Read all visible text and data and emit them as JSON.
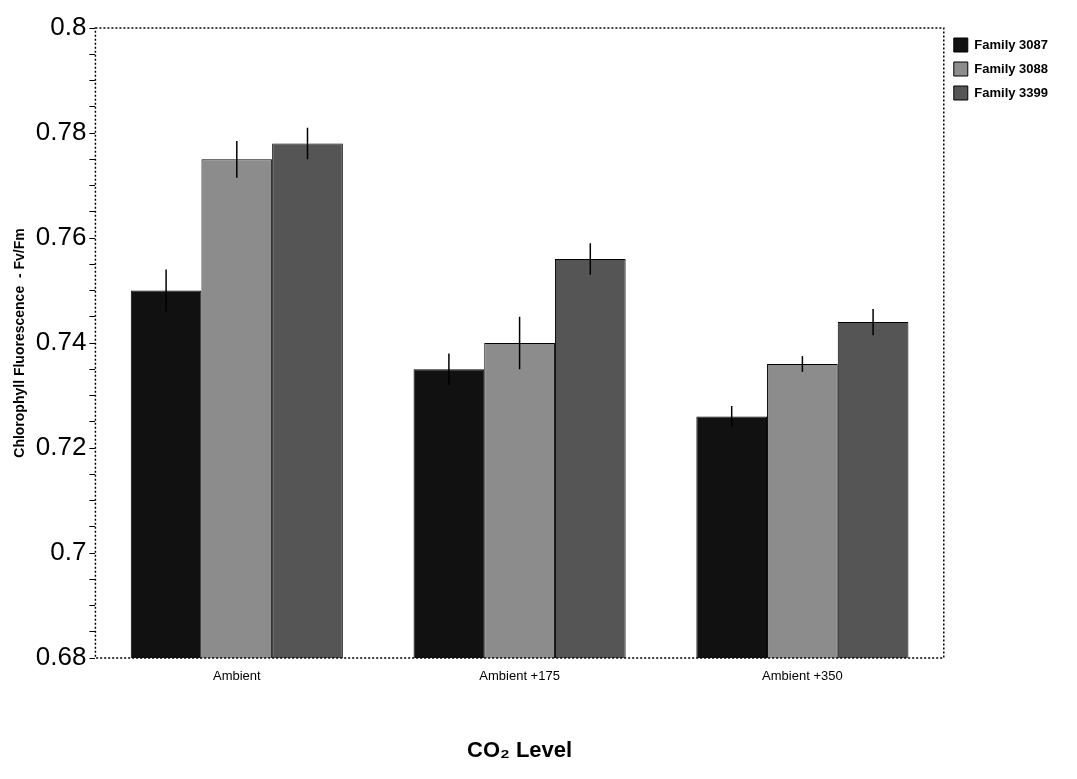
{
  "chart_data": {
    "type": "bar",
    "xlabel": "CO₂ Level",
    "ylabel": "Chlorophyll Fluorescence  - Fv/Fm",
    "categories": [
      "Ambient",
      "Ambient +175",
      "Ambient +350"
    ],
    "series": [
      {
        "name": "Family 3087",
        "color": "#111111",
        "values": [
          0.75,
          0.735,
          0.726
        ],
        "errors": [
          0.004,
          0.003,
          0.002
        ]
      },
      {
        "name": "Family 3088",
        "color": "#8c8c8c",
        "values": [
          0.775,
          0.74,
          0.736
        ],
        "errors": [
          0.0035,
          0.005,
          0.0015
        ]
      },
      {
        "name": "Family 3399",
        "color": "#555555",
        "values": [
          0.778,
          0.756,
          0.744
        ],
        "errors": [
          0.003,
          0.003,
          0.0025
        ]
      }
    ],
    "ylim": [
      0.68,
      0.8
    ],
    "yticks": [
      0.68,
      {
        "value": 0.685,
        "label": null
      },
      {
        "value": 0.69,
        "label": null
      },
      {
        "value": 0.695,
        "label": null
      },
      0.7,
      {
        "value": 0.705,
        "label": null
      },
      {
        "value": 0.71,
        "label": null
      },
      {
        "value": 0.715,
        "label": null
      },
      0.72,
      {
        "value": 0.725,
        "label": null
      },
      {
        "value": 0.73,
        "label": null
      },
      {
        "value": 0.735,
        "label": null
      },
      0.74,
      {
        "value": 0.745,
        "label": null
      },
      {
        "value": 0.75,
        "label": null
      },
      {
        "value": 0.755,
        "label": null
      },
      0.76,
      {
        "value": 0.765,
        "label": null
      },
      {
        "value": 0.77,
        "label": null
      },
      {
        "value": 0.775,
        "label": null
      },
      0.78,
      {
        "value": 0.785,
        "label": null
      },
      {
        "value": 0.79,
        "label": null
      },
      {
        "value": 0.795,
        "label": null
      },
      0.8
    ],
    "grid": false,
    "legend": "top right"
  }
}
